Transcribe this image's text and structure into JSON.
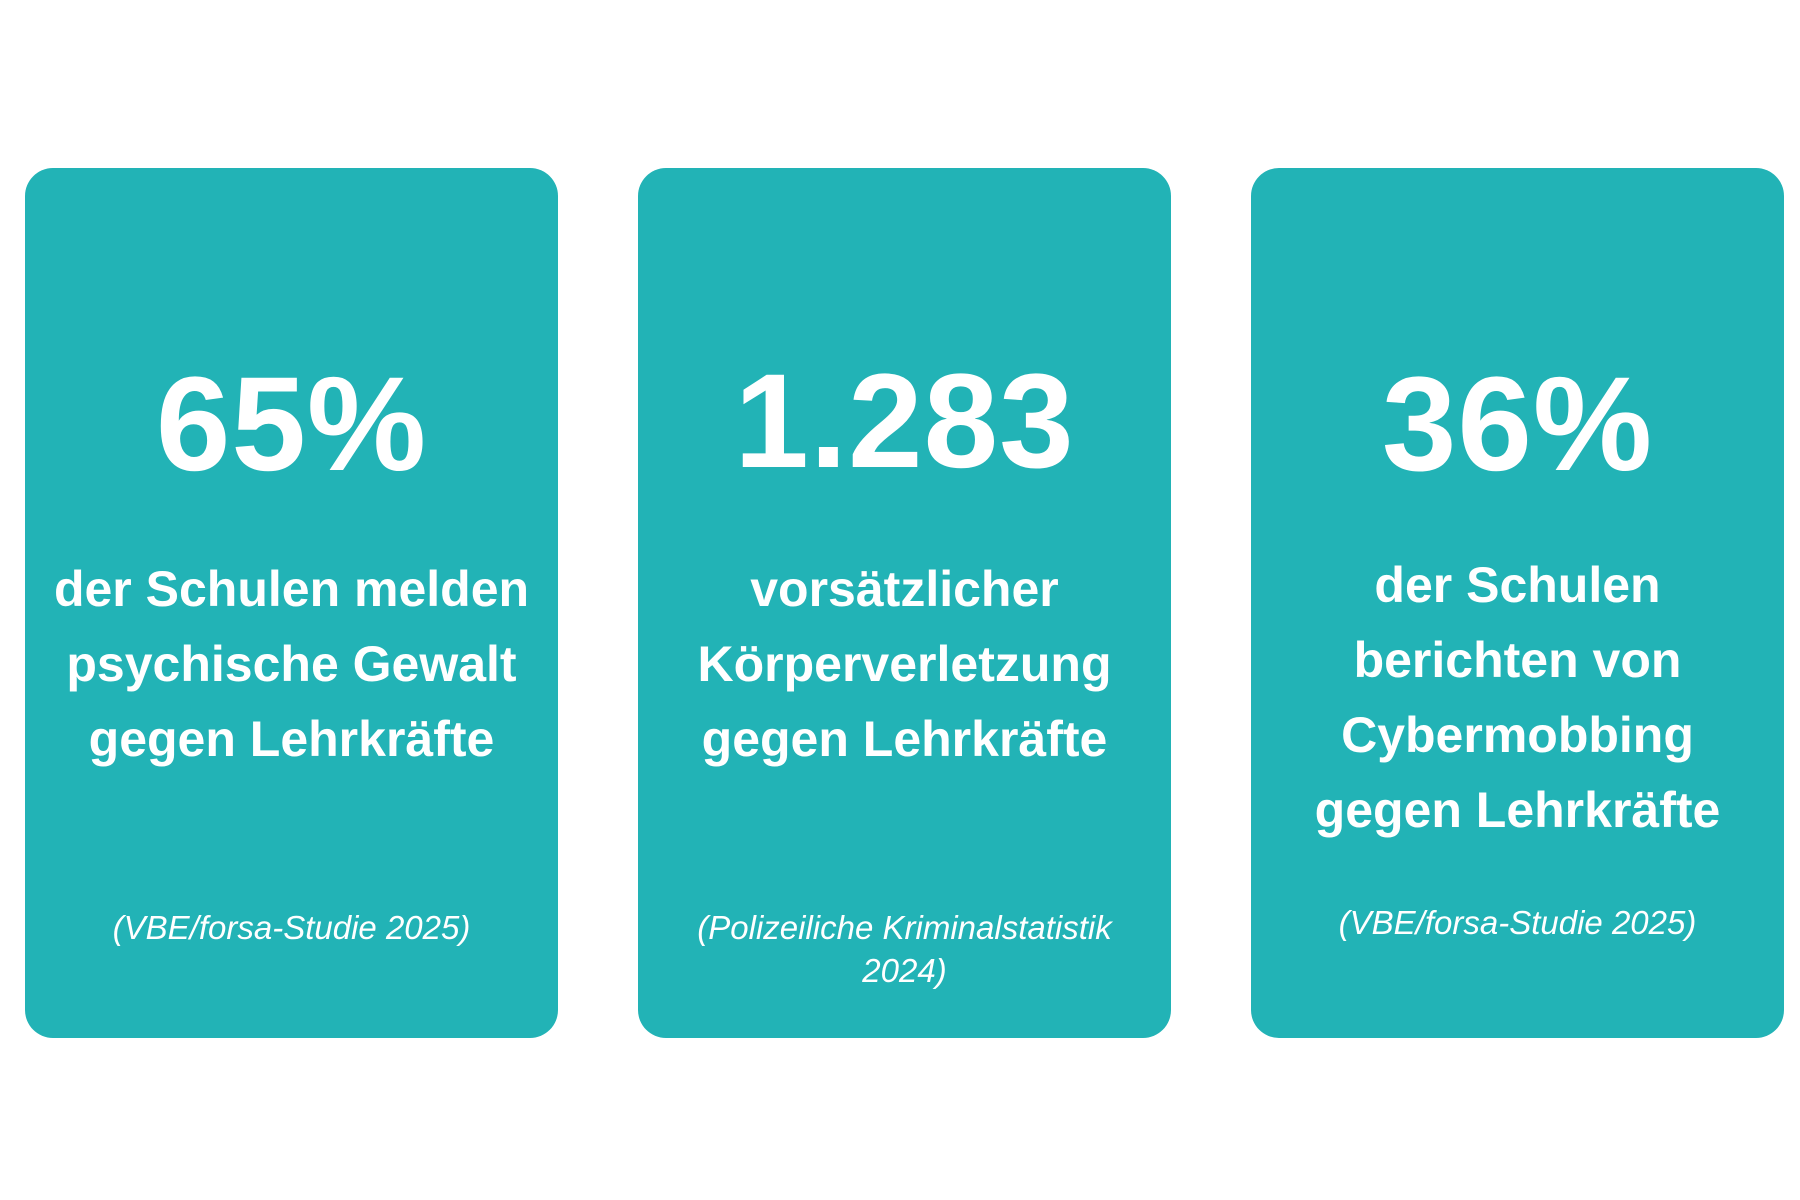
{
  "colors": {
    "card_background": "#22b3b6",
    "text": "#ffffff",
    "page_background": "#ffffff"
  },
  "cards": [
    {
      "stat": "65%",
      "description_lines": [
        "der Schulen melden",
        "psychische Gewalt",
        "gegen Lehrkräfte"
      ],
      "source": "(VBE/forsa-Studie 2025)"
    },
    {
      "stat": "1.283",
      "description_lines": [
        "vorsätzlicher",
        "Körperverletzung",
        "gegen Lehrkräfte"
      ],
      "source": "(Polizeiliche Kriminalstatistik 2024)"
    },
    {
      "stat": "36%",
      "description_lines": [
        "der Schulen",
        "berichten von",
        "Cybermobbing",
        "gegen Lehrkräfte"
      ],
      "source": "(VBE/forsa-Studie 2025)"
    }
  ]
}
